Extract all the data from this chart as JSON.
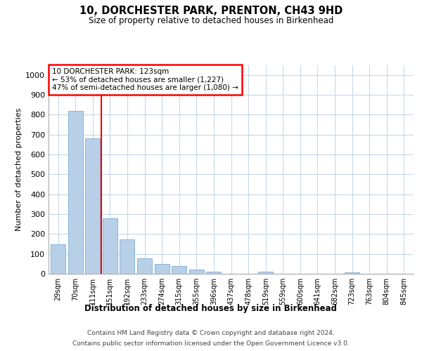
{
  "title1": "10, DORCHESTER PARK, PRENTON, CH43 9HD",
  "title2": "Size of property relative to detached houses in Birkenhead",
  "xlabel": "Distribution of detached houses by size in Birkenhead",
  "ylabel": "Number of detached properties",
  "footer1": "Contains HM Land Registry data © Crown copyright and database right 2024.",
  "footer2": "Contains public sector information licensed under the Open Government Licence v3.0.",
  "annotation_line1": "10 DORCHESTER PARK: 123sqm",
  "annotation_line2": "← 53% of detached houses are smaller (1,227)",
  "annotation_line3": "47% of semi-detached houses are larger (1,080) →",
  "categories": [
    "29sqm",
    "70sqm",
    "111sqm",
    "151sqm",
    "192sqm",
    "233sqm",
    "274sqm",
    "315sqm",
    "355sqm",
    "396sqm",
    "437sqm",
    "478sqm",
    "519sqm",
    "559sqm",
    "600sqm",
    "641sqm",
    "682sqm",
    "723sqm",
    "763sqm",
    "804sqm",
    "845sqm"
  ],
  "values": [
    148,
    820,
    682,
    280,
    172,
    78,
    50,
    40,
    20,
    10,
    0,
    0,
    10,
    0,
    0,
    0,
    0,
    8,
    0,
    0,
    0
  ],
  "bar_color": "#b8cfe8",
  "bar_edge_color": "#7aadd4",
  "redline_x": 2.5,
  "ylim": [
    0,
    1050
  ],
  "yticks": [
    0,
    100,
    200,
    300,
    400,
    500,
    600,
    700,
    800,
    900,
    1000
  ],
  "bg_color": "#ffffff",
  "grid_color": "#c8d8ea"
}
